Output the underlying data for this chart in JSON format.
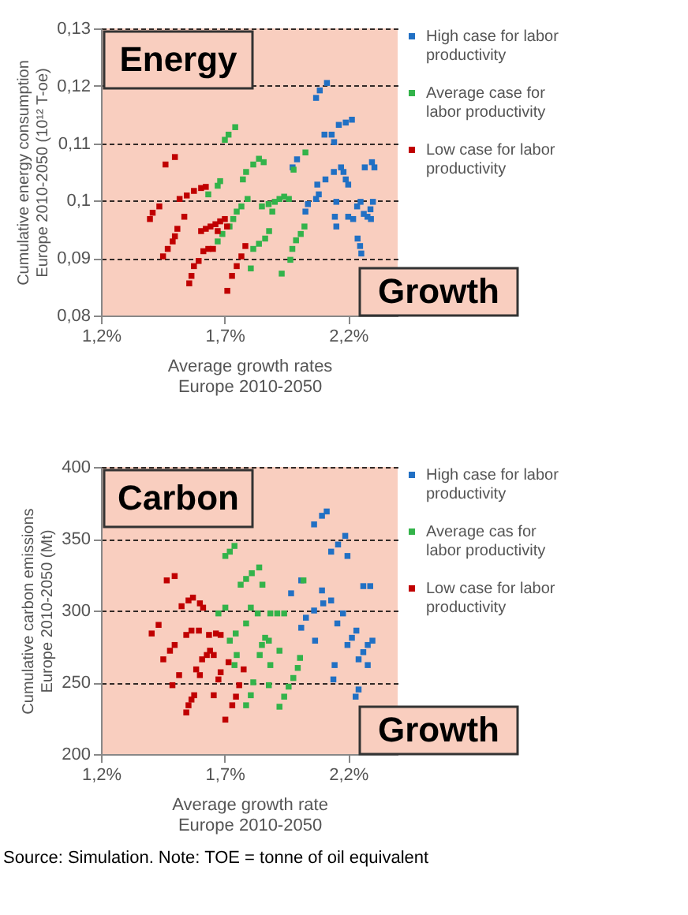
{
  "chart_data": [
    {
      "type": "scatter",
      "xlabel": "Average growth rates\nEurope 2010-2050",
      "ylabel": "Cumulative energy consumption\nEurope  2010-2050 (10¹² T-oe)",
      "xlim": [
        1.2,
        2.4
      ],
      "ylim": [
        0.08,
        0.13
      ],
      "xticks": [
        {
          "value": 1.2,
          "label": "1,2%"
        },
        {
          "value": 1.7,
          "label": "1,7%"
        },
        {
          "value": 2.2,
          "label": "2,2%"
        }
      ],
      "yticks": [
        {
          "value": 0.08,
          "label": "0,08"
        },
        {
          "value": 0.09,
          "label": "0,09"
        },
        {
          "value": 0.1,
          "label": "0,1"
        },
        {
          "value": 0.11,
          "label": "0,11"
        },
        {
          "value": 0.12,
          "label": "0,12"
        },
        {
          "value": 0.13,
          "label": "0,13"
        }
      ],
      "grid": "y",
      "legend": "right",
      "marker": "square",
      "annotations": [
        "Energy",
        "Growth"
      ],
      "series": [
        {
          "name": "High case for labor productivity",
          "color": "#2170c4",
          "x": [
            1.975,
            1.993,
            2.027,
            2.037,
            2.07,
            2.081,
            2.075,
            2.108,
            2.142,
            2.171,
            2.181,
            2.19,
            2.2,
            2.152,
            2.146,
            2.152,
            2.07,
            2.085,
            2.114,
            2.104,
            2.133,
            2.143,
            2.162,
            2.19,
            2.215,
            2.2,
            2.22,
            2.236,
            2.25,
            2.263,
            2.278,
            2.29,
            2.3,
            2.292,
            2.238,
            2.248,
            2.253,
            2.267,
            2.296,
            2.306
          ],
          "values": [
            0.1058,
            0.1072,
            0.0981,
            0.0994,
            0.1003,
            0.1011,
            0.1028,
            0.1037,
            0.105,
            0.1058,
            0.105,
            0.1037,
            0.1028,
            0.0998,
            0.0972,
            0.0955,
            0.1179,
            0.1192,
            0.1205,
            0.1115,
            0.1115,
            0.1102,
            0.1132,
            0.1136,
            0.1141,
            0.0972,
            0.0968,
            0.099,
            0.0998,
            0.0977,
            0.0972,
            0.0985,
            0.0998,
            0.0968,
            0.0934,
            0.0921,
            0.0908,
            0.1058,
            0.1067,
            0.1058
          ]
        },
        {
          "name": "Average case for labor productivity",
          "color": "#33b34a",
          "x": [
            1.701,
            1.716,
            1.743,
            1.634,
            1.672,
            1.682,
            1.774,
            1.787,
            1.816,
            1.839,
            1.858,
            1.749,
            1.768,
            1.793,
            1.672,
            1.691,
            1.72,
            1.735,
            1.806,
            1.816,
            1.839,
            1.864,
            1.88,
            1.851,
            1.878,
            1.903,
            1.922,
            1.941,
            1.96,
            1.893,
            1.931,
            1.966,
            1.974,
            1.989,
            2.008,
            2.023,
            1.979,
            2.027
          ],
          "values": [
            0.1106,
            0.1115,
            0.1128,
            0.1011,
            0.1026,
            0.1034,
            0.1037,
            0.105,
            0.1063,
            0.1073,
            0.1067,
            0.0981,
            0.099,
            0.1003,
            0.0929,
            0.0942,
            0.0955,
            0.0968,
            0.0882,
            0.0916,
            0.0925,
            0.0934,
            0.0947,
            0.099,
            0.0994,
            0.0998,
            0.1003,
            0.1007,
            0.1003,
            0.0981,
            0.0873,
            0.0897,
            0.0916,
            0.0931,
            0.0942,
            0.0955,
            0.1054,
            0.1084
          ]
        },
        {
          "name": "Low case for labor productivity",
          "color": "#c00000",
          "x": [
            1.461,
            1.499,
            1.398,
            1.409,
            1.436,
            1.518,
            1.547,
            1.576,
            1.605,
            1.624,
            1.451,
            1.47,
            1.49,
            1.499,
            1.509,
            1.537,
            1.557,
            1.566,
            1.576,
            1.595,
            1.614,
            1.634,
            1.653,
            1.605,
            1.624,
            1.643,
            1.663,
            1.682,
            1.701,
            1.672,
            1.71,
            1.711,
            1.73,
            1.749,
            1.768,
            1.784
          ],
          "values": [
            0.1063,
            0.1076,
            0.0968,
            0.0979,
            0.099,
            0.1003,
            0.1009,
            0.1017,
            0.1022,
            0.1024,
            0.0903,
            0.0916,
            0.0929,
            0.0938,
            0.0951,
            0.0972,
            0.0856,
            0.0869,
            0.0886,
            0.0895,
            0.0912,
            0.0916,
            0.0916,
            0.0947,
            0.0951,
            0.0955,
            0.0959,
            0.0964,
            0.0968,
            0.0947,
            0.0955,
            0.0843,
            0.0869,
            0.0886,
            0.0903,
            0.0921
          ]
        }
      ]
    },
    {
      "type": "scatter",
      "xlabel": "Average growth rate\nEurope  2010-2050",
      "ylabel": "Cumulative carbon emissions\nEurope  2010-2050 (Mt)",
      "xlim": [
        1.2,
        2.4
      ],
      "ylim": [
        200,
        400
      ],
      "xticks": [
        {
          "value": 1.2,
          "label": "1,2%"
        },
        {
          "value": 1.7,
          "label": "1,7%"
        },
        {
          "value": 2.2,
          "label": "2,2%"
        }
      ],
      "yticks": [
        200,
        250,
        300,
        350,
        400
      ],
      "grid": "y",
      "legend": "right",
      "marker": "square",
      "annotations": [
        "Carbon",
        "Growth",
        "Source: Simulation. Note: TOE = tonne of oil equivalent"
      ],
      "series": [
        {
          "name": "High case for labor productivity",
          "color": "#2170c4",
          "x": [
            1.969,
            2.01,
            2.01,
            2.029,
            2.066,
            2.062,
            2.099,
            2.131,
            2.062,
            2.094,
            2.113,
            2.131,
            2.159,
            2.188,
            2.197,
            2.094,
            2.14,
            2.145,
            2.156,
            2.179,
            2.197,
            2.215,
            2.233,
            2.242,
            2.261,
            2.279,
            2.23,
            2.242,
            2.261,
            2.289,
            2.298,
            2.279
          ],
          "values": [
            312,
            321,
            288,
            295,
            279,
            300,
            305,
            307,
            360,
            366,
            369,
            341,
            346,
            352,
            338,
            314,
            252,
            262,
            291,
            298,
            276,
            281,
            286,
            266,
            271,
            276,
            240,
            245,
            317,
            317,
            279,
            262
          ]
        },
        {
          "name": "Average cas for labor productivity",
          "color": "#33b34a",
          "x": [
            1.703,
            1.721,
            1.74,
            1.675,
            1.703,
            1.721,
            1.745,
            1.765,
            1.787,
            1.81,
            1.84,
            1.853,
            1.787,
            1.806,
            1.834,
            1.74,
            1.749,
            1.787,
            1.806,
            1.816,
            1.842,
            1.851,
            1.864,
            1.879,
            1.879,
            1.885,
            1.913,
            1.941,
            1.922,
            1.885,
            1.922,
            1.941,
            1.959,
            1.978,
            1.996,
            2.005,
            2.019
          ],
          "values": [
            338,
            341,
            345,
            298,
            302,
            279,
            284,
            318,
            322,
            326,
            330,
            318,
            291,
            302,
            298,
            262,
            269,
            234,
            241,
            250,
            269,
            276,
            281,
            279,
            248,
            298,
            298,
            298,
            272,
            262,
            233,
            240,
            247,
            253,
            260,
            267,
            321
          ]
        },
        {
          "name": "Low case for labor productivity",
          "color": "#c00000",
          "x": [
            1.466,
            1.498,
            1.405,
            1.433,
            1.452,
            1.479,
            1.498,
            1.516,
            1.489,
            1.526,
            1.554,
            1.572,
            1.6,
            1.613,
            1.545,
            1.566,
            1.596,
            1.545,
            1.554,
            1.566,
            1.577,
            1.585,
            1.6,
            1.609,
            1.628,
            1.641,
            1.656,
            1.637,
            1.665,
            1.684,
            1.656,
            1.675,
            1.684,
            1.703,
            1.716,
            1.731,
            1.746,
            1.759,
            1.777
          ],
          "values": [
            321,
            324,
            284,
            290,
            266,
            272,
            276,
            255,
            248,
            303,
            307,
            309,
            305,
            302,
            283,
            286,
            286,
            229,
            234,
            238,
            241,
            259,
            255,
            266,
            269,
            272,
            269,
            283,
            284,
            283,
            241,
            252,
            257,
            224,
            264,
            234,
            240,
            248,
            259
          ]
        }
      ]
    }
  ]
}
